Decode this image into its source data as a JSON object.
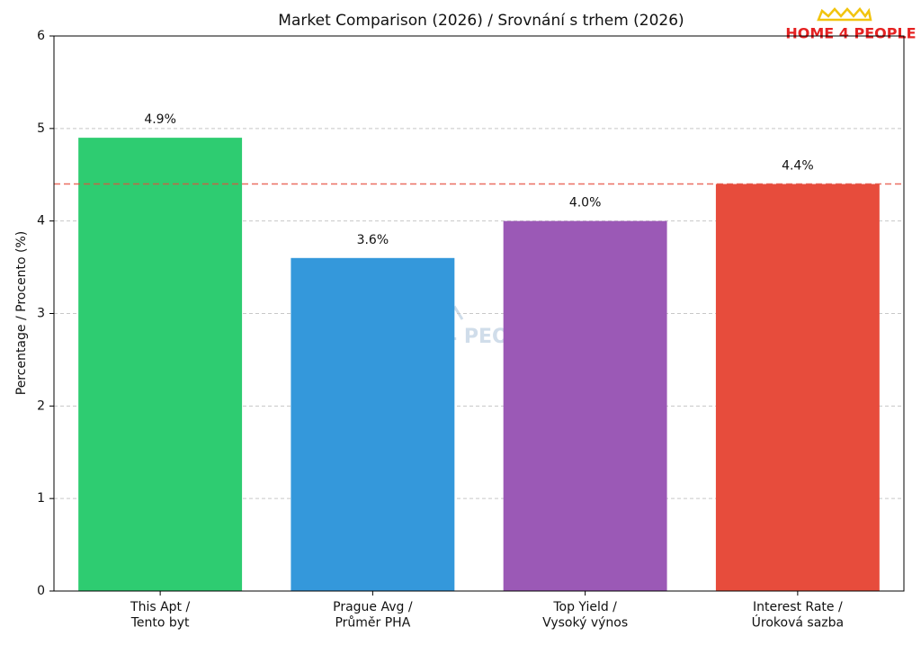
{
  "chart_data": {
    "type": "bar",
    "title": "Market Comparison (2026) / Srovnání s trhem (2026)",
    "y_label": "Percentage / Procento (%)",
    "logo": "HOME 4 PEOPLE",
    "categories": [
      "This Apt /\nTento byt",
      "Prague Avg /\nPrůměr PHA",
      "Top Yield /\nVysoký výnos",
      "Interest Rate /\nÚroková sazba"
    ],
    "values": [
      4.9,
      3.6,
      4.0,
      4.4
    ],
    "value_labels": [
      "4.9%",
      "3.6%",
      "4.0%",
      "4.4%"
    ],
    "colors": [
      "#2ecc71",
      "#3498db",
      "#9b59b6",
      "#e74c3c"
    ],
    "reference_line": {
      "value": 4.4,
      "color": "#e74c3c"
    },
    "ylim": [
      0,
      6
    ],
    "yticks": [
      0,
      1,
      2,
      3,
      4,
      5,
      6
    ],
    "grid": true
  }
}
